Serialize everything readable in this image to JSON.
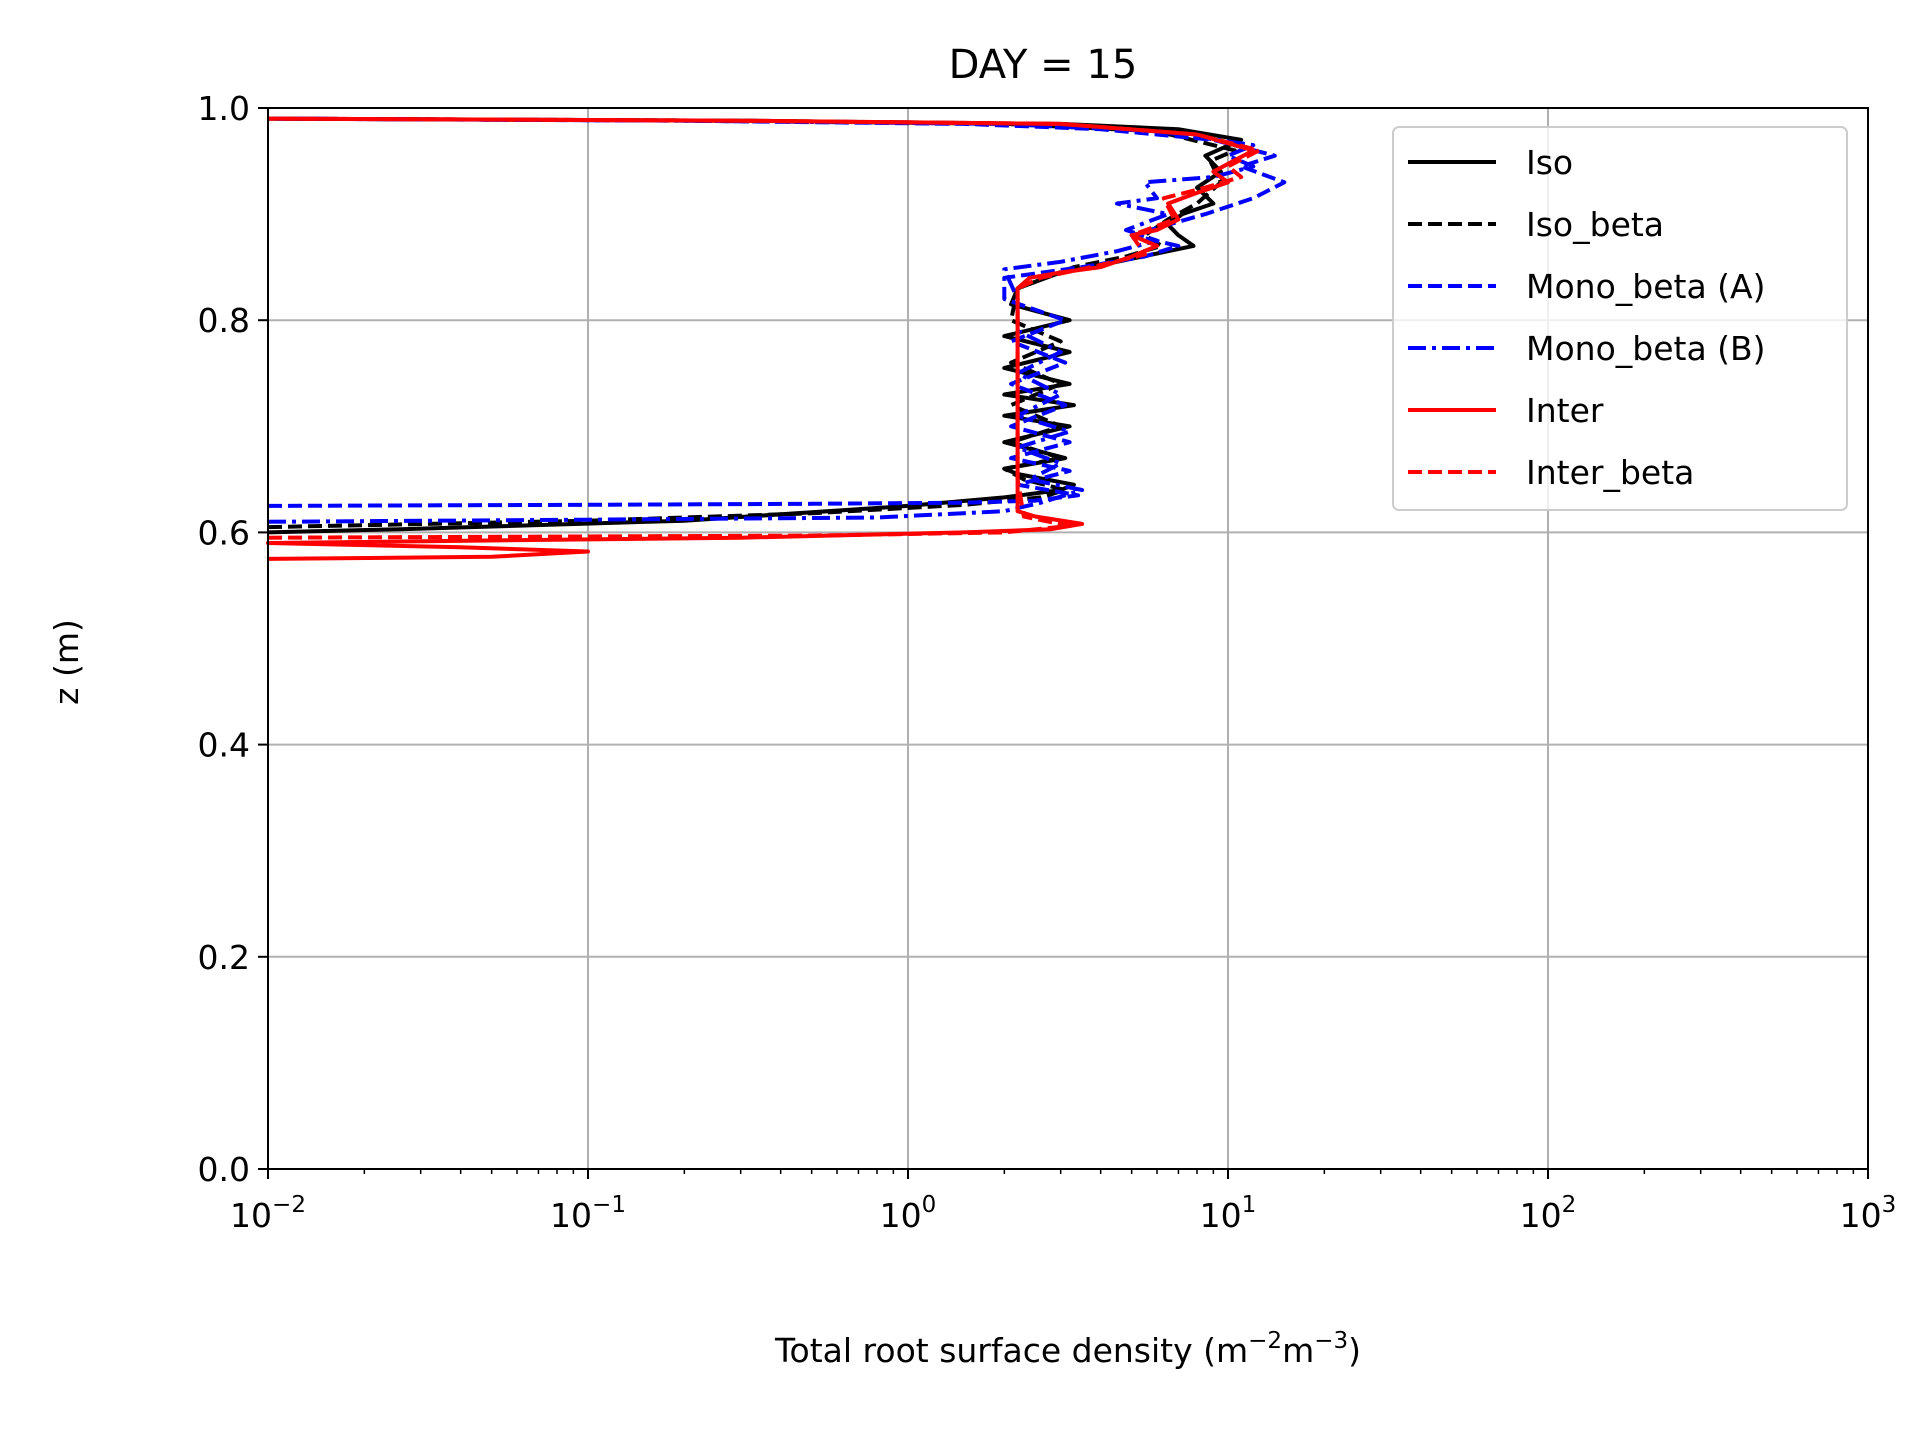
{
  "chart_data": {
    "type": "line",
    "title": "DAY = 15",
    "xlabel": "Total root surface density (m",
    "xlabel_sup1": "−2",
    "xlabel_mid": "m",
    "xlabel_sup2": "−3",
    "xlabel_end": ")",
    "ylabel": "z (m)",
    "xscale": "log",
    "xlim": [
      0.01,
      1000
    ],
    "ylim": [
      0.0,
      1.0
    ],
    "grid": true,
    "legend_position": "top-right",
    "x_ticks": [
      {
        "value": 0.01,
        "base": "10",
        "exp": "−2"
      },
      {
        "value": 0.1,
        "base": "10",
        "exp": "−1"
      },
      {
        "value": 1,
        "base": "10",
        "exp": "0"
      },
      {
        "value": 10,
        "base": "10",
        "exp": "1"
      },
      {
        "value": 100,
        "base": "10",
        "exp": "2"
      },
      {
        "value": 1000,
        "base": "10",
        "exp": "3"
      }
    ],
    "y_ticks": [
      {
        "value": 0.0,
        "label": "0.0"
      },
      {
        "value": 0.2,
        "label": "0.2"
      },
      {
        "value": 0.4,
        "label": "0.4"
      },
      {
        "value": 0.6,
        "label": "0.6"
      },
      {
        "value": 0.8,
        "label": "0.8"
      },
      {
        "value": 1.0,
        "label": "1.0"
      }
    ],
    "series": [
      {
        "name": "Iso",
        "color": "#000000",
        "dash": "solid",
        "points": [
          [
            0.01,
            0.6
          ],
          [
            0.026,
            0.603
          ],
          [
            0.2,
            0.611
          ],
          [
            1.0,
            0.625
          ],
          [
            2.0,
            0.633
          ],
          [
            3.0,
            0.64
          ],
          [
            3.3,
            0.645
          ],
          [
            2.2,
            0.655
          ],
          [
            2.0,
            0.66
          ],
          [
            3.1,
            0.67
          ],
          [
            2.0,
            0.685
          ],
          [
            3.2,
            0.7
          ],
          [
            2.0,
            0.71
          ],
          [
            3.3,
            0.72
          ],
          [
            2.0,
            0.73
          ],
          [
            3.2,
            0.74
          ],
          [
            2.0,
            0.755
          ],
          [
            3.2,
            0.77
          ],
          [
            2.0,
            0.785
          ],
          [
            3.2,
            0.8
          ],
          [
            2.1,
            0.815
          ],
          [
            2.2,
            0.83
          ],
          [
            3.0,
            0.845
          ],
          [
            4.5,
            0.855
          ],
          [
            6.5,
            0.865
          ],
          [
            7.8,
            0.87
          ],
          [
            7.0,
            0.88
          ],
          [
            6.5,
            0.89
          ],
          [
            7.2,
            0.9
          ],
          [
            9.0,
            0.91
          ],
          [
            8.0,
            0.925
          ],
          [
            9.5,
            0.94
          ],
          [
            8.5,
            0.955
          ],
          [
            11.0,
            0.97
          ],
          [
            7.0,
            0.98
          ],
          [
            3.0,
            0.985
          ],
          [
            0.3,
            0.988
          ],
          [
            0.01,
            0.99
          ]
        ]
      },
      {
        "name": "Iso_beta",
        "color": "#000000",
        "dash": "dashed",
        "points": [
          [
            0.01,
            0.605
          ],
          [
            0.1,
            0.611
          ],
          [
            0.5,
            0.618
          ],
          [
            1.5,
            0.626
          ],
          [
            2.6,
            0.633
          ],
          [
            3.1,
            0.64
          ],
          [
            2.3,
            0.65
          ],
          [
            2.0,
            0.66
          ],
          [
            3.0,
            0.67
          ],
          [
            2.1,
            0.685
          ],
          [
            3.0,
            0.7
          ],
          [
            2.1,
            0.72
          ],
          [
            3.0,
            0.74
          ],
          [
            2.1,
            0.76
          ],
          [
            3.0,
            0.78
          ],
          [
            2.1,
            0.8
          ],
          [
            2.2,
            0.83
          ],
          [
            3.3,
            0.85
          ],
          [
            4.8,
            0.86
          ],
          [
            6.2,
            0.87
          ],
          [
            5.5,
            0.88
          ],
          [
            6.5,
            0.895
          ],
          [
            8.0,
            0.91
          ],
          [
            9.5,
            0.93
          ],
          [
            8.8,
            0.95
          ],
          [
            10.5,
            0.96
          ],
          [
            6.0,
            0.978
          ],
          [
            2.0,
            0.985
          ],
          [
            0.3,
            0.988
          ],
          [
            0.01,
            0.99
          ]
        ]
      },
      {
        "name": "Mono_beta (A)",
        "color": "#0000ff",
        "dash": "dashed",
        "points": [
          [
            0.01,
            0.625
          ],
          [
            0.1,
            0.626
          ],
          [
            0.5,
            0.627
          ],
          [
            1.5,
            0.628
          ],
          [
            2.5,
            0.63
          ],
          [
            3.4,
            0.635
          ],
          [
            2.2,
            0.645
          ],
          [
            3.2,
            0.658
          ],
          [
            2.1,
            0.67
          ],
          [
            3.2,
            0.685
          ],
          [
            2.1,
            0.7
          ],
          [
            3.1,
            0.72
          ],
          [
            2.1,
            0.74
          ],
          [
            3.1,
            0.76
          ],
          [
            2.1,
            0.78
          ],
          [
            3.1,
            0.8
          ],
          [
            2.0,
            0.82
          ],
          [
            2.0,
            0.84
          ],
          [
            3.5,
            0.85
          ],
          [
            5.5,
            0.86
          ],
          [
            7.0,
            0.87
          ],
          [
            5.0,
            0.88
          ],
          [
            6.5,
            0.89
          ],
          [
            8.5,
            0.9
          ],
          [
            12.0,
            0.915
          ],
          [
            15.0,
            0.93
          ],
          [
            11.0,
            0.945
          ],
          [
            14.0,
            0.955
          ],
          [
            9.0,
            0.97
          ],
          [
            4.0,
            0.98
          ],
          [
            1.5,
            0.985
          ],
          [
            0.2,
            0.988
          ],
          [
            0.01,
            0.99
          ]
        ]
      },
      {
        "name": "Mono_beta (B)",
        "color": "#0000ff",
        "dash": "dashdot",
        "points": [
          [
            0.01,
            0.61
          ],
          [
            0.1,
            0.612
          ],
          [
            0.8,
            0.614
          ],
          [
            2.0,
            0.62
          ],
          [
            2.6,
            0.628
          ],
          [
            3.5,
            0.64
          ],
          [
            2.4,
            0.65
          ],
          [
            3.0,
            0.665
          ],
          [
            2.2,
            0.68
          ],
          [
            3.2,
            0.695
          ],
          [
            2.2,
            0.71
          ],
          [
            3.0,
            0.73
          ],
          [
            2.2,
            0.75
          ],
          [
            3.0,
            0.77
          ],
          [
            2.2,
            0.79
          ],
          [
            2.2,
            0.82
          ],
          [
            2.0,
            0.848
          ],
          [
            3.0,
            0.855
          ],
          [
            4.5,
            0.865
          ],
          [
            6.0,
            0.875
          ],
          [
            4.8,
            0.885
          ],
          [
            6.5,
            0.9
          ],
          [
            4.5,
            0.91
          ],
          [
            6.0,
            0.915
          ],
          [
            5.5,
            0.93
          ],
          [
            9.0,
            0.935
          ],
          [
            12.0,
            0.945
          ],
          [
            10.0,
            0.955
          ],
          [
            12.0,
            0.965
          ],
          [
            6.0,
            0.978
          ],
          [
            2.0,
            0.985
          ],
          [
            0.2,
            0.988
          ],
          [
            0.01,
            0.99
          ]
        ]
      },
      {
        "name": "Inter",
        "color": "#ff0000",
        "dash": "solid",
        "points": [
          [
            0.01,
            0.575
          ],
          [
            0.05,
            0.577
          ],
          [
            0.1,
            0.582
          ],
          [
            0.04,
            0.586
          ],
          [
            0.01,
            0.59
          ],
          [
            0.3,
            0.595
          ],
          [
            1.5,
            0.6
          ],
          [
            2.8,
            0.603
          ],
          [
            3.5,
            0.608
          ],
          [
            2.5,
            0.615
          ],
          [
            2.2,
            0.62
          ],
          [
            2.2,
            0.66
          ],
          [
            2.2,
            0.72
          ],
          [
            2.2,
            0.8
          ],
          [
            2.2,
            0.83
          ],
          [
            2.4,
            0.84
          ],
          [
            3.0,
            0.845
          ],
          [
            4.0,
            0.85
          ],
          [
            5.0,
            0.86
          ],
          [
            6.0,
            0.87
          ],
          [
            5.0,
            0.88
          ],
          [
            6.0,
            0.885
          ],
          [
            7.0,
            0.895
          ],
          [
            6.5,
            0.91
          ],
          [
            8.0,
            0.92
          ],
          [
            10.0,
            0.93
          ],
          [
            9.0,
            0.94
          ],
          [
            12.0,
            0.96
          ],
          [
            8.0,
            0.975
          ],
          [
            3.0,
            0.985
          ],
          [
            0.3,
            0.988
          ],
          [
            0.01,
            0.99
          ]
        ]
      },
      {
        "name": "Inter_beta",
        "color": "#ff0000",
        "dash": "dashed",
        "points": [
          [
            0.01,
            0.595
          ],
          [
            0.5,
            0.597
          ],
          [
            2.0,
            0.6
          ],
          [
            3.2,
            0.606
          ],
          [
            2.3,
            0.615
          ],
          [
            2.2,
            0.65
          ],
          [
            2.2,
            0.75
          ],
          [
            2.2,
            0.83
          ],
          [
            2.6,
            0.84
          ],
          [
            4.0,
            0.852
          ],
          [
            5.5,
            0.862
          ],
          [
            5.0,
            0.88
          ],
          [
            6.8,
            0.895
          ],
          [
            6.3,
            0.915
          ],
          [
            8.5,
            0.925
          ],
          [
            11.0,
            0.935
          ],
          [
            10.0,
            0.945
          ],
          [
            12.5,
            0.96
          ],
          [
            8.0,
            0.975
          ],
          [
            3.0,
            0.985
          ],
          [
            0.3,
            0.988
          ],
          [
            0.01,
            0.99
          ]
        ]
      }
    ]
  }
}
